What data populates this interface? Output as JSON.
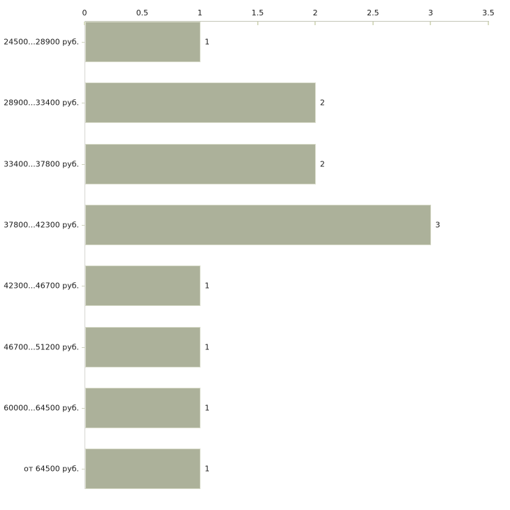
{
  "chart_data": {
    "type": "bar",
    "orientation": "horizontal",
    "title": "",
    "xlabel": "",
    "ylabel": "",
    "categories": [
      "24500...28900 руб.",
      "28900...33400 руб.",
      "33400...37800 руб.",
      "37800...42300 руб.",
      "42300...46700 руб.",
      "46700...51200 руб.",
      "60000...64500 руб.",
      "от 64500 руб."
    ],
    "values": [
      1,
      2,
      2,
      3,
      1,
      1,
      1,
      1
    ],
    "value_labels": [
      "1",
      "2",
      "2",
      "3",
      "1",
      "1",
      "1",
      "1"
    ],
    "x_ticks": [
      "0",
      "0.5",
      "1",
      "1.5",
      "2",
      "2.5",
      "3",
      "3.5"
    ],
    "xlim": [
      0,
      3.5
    ],
    "grid": false,
    "legend": "none",
    "colors": {
      "background": "#ffffff",
      "bar_fill": "#acb19a",
      "bar_border": "#d9dccb",
      "x_axis_line": "#c4c6b8",
      "x_tick_mark": "#d8dcc2",
      "y_axis_line": "#d6d6d2",
      "category_tick": "#cdd1bc",
      "text": "#1a1a1a"
    }
  }
}
